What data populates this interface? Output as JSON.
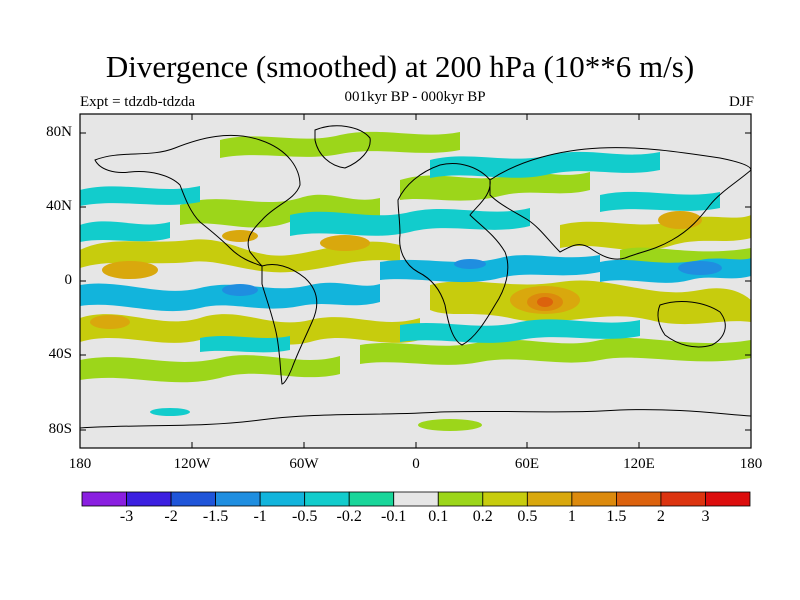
{
  "title": "Divergence (smoothed) at 200 hPa (10**6 m/s)",
  "subtitle": "001kyr BP - 000kyr BP",
  "experiment": "Expt = tdzdb-tdzda",
  "season": "DJF",
  "lat_labels": [
    "80N",
    "40N",
    "0",
    "40S",
    "80S"
  ],
  "lon_labels": [
    "180",
    "120W",
    "60W",
    "0",
    "60E",
    "120E",
    "180"
  ],
  "colorbar": {
    "labels": [
      "-3",
      "-2",
      "-1.5",
      "-1",
      "-0.5",
      "-0.2",
      "-0.1",
      "0.1",
      "0.2",
      "0.5",
      "1",
      "1.5",
      "2",
      "3"
    ],
    "colors": [
      "#8a1fe0",
      "#3c1fe0",
      "#1f55d9",
      "#1f8ee0",
      "#12b4dc",
      "#12cccc",
      "#19d69a",
      "#e6e6e6",
      "#9cd61a",
      "#c7cc0d",
      "#d9a80d",
      "#dc8a0d",
      "#dc620d",
      "#dc3410",
      "#dc0d0d"
    ]
  },
  "chart_data": {
    "type": "heatmap",
    "variable": "Divergence (smoothed) at 200 hPa",
    "units": "10**6 m/s",
    "x_range": [
      -180,
      180
    ],
    "y_range": [
      -90,
      90
    ],
    "x_ticks": [
      -180,
      -120,
      -60,
      0,
      60,
      120,
      180
    ],
    "y_ticks": [
      80,
      40,
      0,
      -40,
      -80
    ],
    "levels": [
      -3,
      -2,
      -1.5,
      -1,
      -0.5,
      -0.2,
      -0.1,
      0.1,
      0.2,
      0.5,
      1,
      1.5,
      2,
      3
    ],
    "features": [
      {
        "lon": 68,
        "lat": -12,
        "value": 1.5
      },
      {
        "lon": 120,
        "lat": 5,
        "value": -0.5
      },
      {
        "lon": -90,
        "lat": 0,
        "value": -0.5
      },
      {
        "lon": -30,
        "lat": 20,
        "value": 0.5
      },
      {
        "lon": -150,
        "lat": 10,
        "value": 0.5
      },
      {
        "lon": -60,
        "lat": 45,
        "value": 0.2
      },
      {
        "lon": 140,
        "lat": 30,
        "value": 0.5
      }
    ]
  }
}
